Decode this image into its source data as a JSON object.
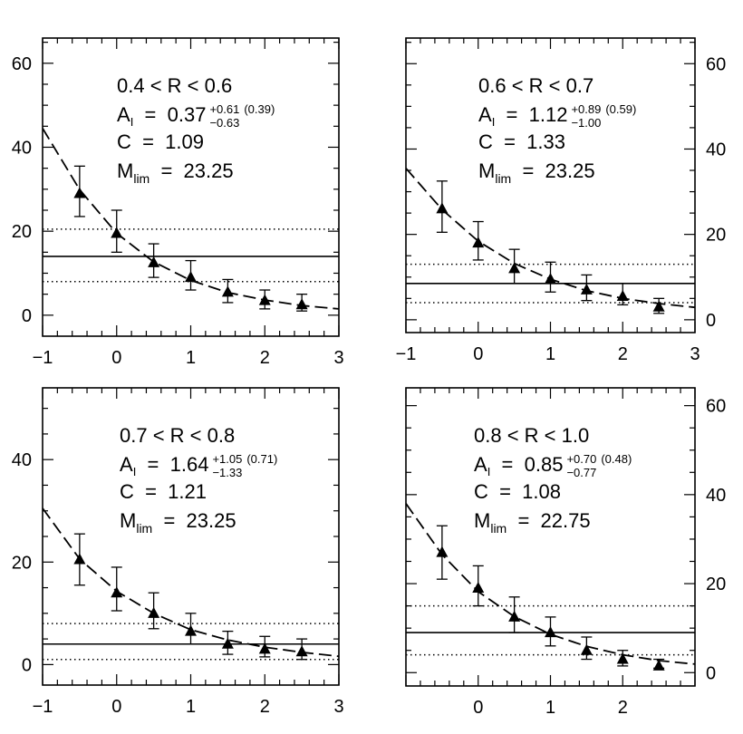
{
  "chart_data": [
    {
      "type": "scatter",
      "x": [
        -0.5,
        0,
        0.5,
        1,
        1.5,
        2,
        2.5
      ],
      "y": [
        29,
        19.5,
        12.5,
        9,
        5.5,
        3.5,
        2.5
      ],
      "y_err_low": [
        5.5,
        4.5,
        3.5,
        3,
        2.5,
        2,
        1.5
      ],
      "y_err_high": [
        6.5,
        5.5,
        4.5,
        4,
        3,
        2.5,
        2.5
      ],
      "fit_curve": [
        [
          -1,
          44.5
        ],
        [
          -0.5,
          29.9
        ],
        [
          0,
          19.5
        ],
        [
          0.5,
          12.7
        ],
        [
          1,
          8.3
        ],
        [
          1.5,
          5.4
        ],
        [
          2,
          3.6
        ],
        [
          2.5,
          2.3
        ],
        [
          3,
          1.5
        ]
      ],
      "horizontal_lines": {
        "solid": 14,
        "dotted": [
          20.5,
          8
        ]
      },
      "xlim": [
        -1,
        3
      ],
      "ylim": [
        -5,
        66
      ],
      "x_ticks": [
        "-1",
        "0",
        "1",
        "2",
        "3"
      ],
      "y_ticks": [
        "0",
        "20",
        "40",
        "60"
      ],
      "y_tick_values": [
        0,
        20,
        40,
        60
      ],
      "y_axis_side": "left",
      "annotation": {
        "range": "0.4  <  R  <  0.6",
        "a_label": "A",
        "a_sub": "I",
        "a_value": "  =  0.37",
        "a_err_plus": "+0.61",
        "a_err_minus": "−0.63",
        "a_err_sigma": "(0.39)",
        "c_line": "C  =  1.09",
        "m_label": "M",
        "m_sub": "lim",
        "m_value": "  =  23.25"
      }
    },
    {
      "type": "scatter",
      "x": [
        -0.5,
        0,
        0.5,
        1,
        1.5,
        2,
        2.5
      ],
      "y": [
        26,
        18,
        12,
        9.5,
        7,
        5.5,
        3
      ],
      "y_err_low": [
        5.5,
        4,
        3.5,
        3,
        2.5,
        2,
        1.5
      ],
      "y_err_high": [
        6.5,
        5,
        4.5,
        4,
        3.5,
        3,
        2
      ],
      "fit_curve": [
        [
          -1,
          35.5
        ],
        [
          -0.5,
          25.8
        ],
        [
          0,
          18.4
        ],
        [
          0.5,
          13.2
        ],
        [
          1,
          9.5
        ],
        [
          1.5,
          6.8
        ],
        [
          2,
          5
        ],
        [
          2.5,
          3.8
        ],
        [
          3,
          2.9
        ]
      ],
      "horizontal_lines": {
        "solid": 8.5,
        "dotted": [
          13,
          4
        ]
      },
      "xlim": [
        -1,
        3
      ],
      "ylim": [
        -3,
        66
      ],
      "x_ticks": [
        "-1",
        "0",
        "1",
        "2",
        "3"
      ],
      "y_ticks": [
        "0",
        "20",
        "40",
        "60"
      ],
      "y_tick_values": [
        0,
        20,
        40,
        60
      ],
      "y_axis_side": "right",
      "annotation": {
        "range": "0.6  <  R  <  0.7",
        "a_label": "A",
        "a_sub": "I",
        "a_value": "  =  1.12",
        "a_err_plus": "+0.89",
        "a_err_minus": "−1.00",
        "a_err_sigma": "(0.59)",
        "c_line": "C  =  1.33",
        "m_label": "M",
        "m_sub": "lim",
        "m_value": "  =  23.25"
      }
    },
    {
      "type": "scatter",
      "x": [
        -0.5,
        0,
        0.5,
        1,
        1.5,
        2,
        2.5
      ],
      "y": [
        20.5,
        14,
        10,
        6.5,
        4,
        3,
        2.5
      ],
      "y_err_low": [
        5,
        3.5,
        3,
        2.5,
        2,
        1.5,
        1.5
      ],
      "y_err_high": [
        5,
        5,
        4,
        3.5,
        2.5,
        2.5,
        2.5
      ],
      "fit_curve": [
        [
          -1,
          30.5
        ],
        [
          -0.5,
          20.6
        ],
        [
          0,
          14.3
        ],
        [
          0.5,
          10
        ],
        [
          1,
          6.8
        ],
        [
          1.5,
          4.8
        ],
        [
          2,
          3.4
        ],
        [
          2.5,
          2.4
        ],
        [
          3,
          1.6
        ]
      ],
      "horizontal_lines": {
        "solid": 4,
        "dotted": [
          8,
          1
        ]
      },
      "xlim": [
        -1,
        3
      ],
      "ylim": [
        -4,
        54
      ],
      "x_ticks": [
        "-1",
        "0",
        "1",
        "2",
        "3"
      ],
      "y_ticks": [
        "0",
        "20",
        "40"
      ],
      "y_tick_values": [
        0,
        20,
        40
      ],
      "y_axis_side": "left",
      "annotation": {
        "range": "0.7  <  R  <  0.8",
        "a_label": "A",
        "a_sub": "I",
        "a_value": "  =  1.64",
        "a_err_plus": "+1.05",
        "a_err_minus": "−1.33",
        "a_err_sigma": "(0.71)",
        "c_line": "C  =  1.21",
        "m_label": "M",
        "m_sub": "lim",
        "m_value": "  =  23.25"
      }
    },
    {
      "type": "scatter",
      "x": [
        -0.5,
        0,
        0.5,
        1,
        1.5,
        2,
        2.5
      ],
      "y": [
        27,
        19,
        12.5,
        9,
        5,
        3,
        1.5
      ],
      "y_err_low": [
        6,
        4,
        3.5,
        3,
        2,
        1.5,
        0.5
      ],
      "y_err_high": [
        6,
        5,
        4.5,
        3.5,
        3,
        2,
        1.5
      ],
      "fit_curve": [
        [
          -1,
          38
        ],
        [
          -0.5,
          26.5
        ],
        [
          0,
          18.2
        ],
        [
          0.5,
          12.6
        ],
        [
          1,
          8.6
        ],
        [
          1.5,
          5.9
        ],
        [
          2,
          4
        ],
        [
          2.5,
          2.7
        ],
        [
          3,
          1.9
        ]
      ],
      "horizontal_lines": {
        "solid": 9,
        "dotted": [
          15,
          4
        ]
      },
      "xlim": [
        -1,
        3
      ],
      "ylim": [
        -3,
        64
      ],
      "x_ticks": [
        "0",
        "1",
        "2"
      ],
      "x_tick_values": [
        0,
        1,
        2
      ],
      "y_ticks": [
        "0",
        "20",
        "40",
        "60"
      ],
      "y_tick_values": [
        0,
        20,
        40,
        60
      ],
      "y_axis_side": "right",
      "annotation": {
        "range": "0.8  <  R  <  1.0",
        "a_label": "A",
        "a_sub": "I",
        "a_value": "  =  0.85",
        "a_err_plus": "+0.70",
        "a_err_minus": "−0.77",
        "a_err_sigma": "(0.48)",
        "c_line": "C  =  1.08",
        "m_label": "M",
        "m_sub": "lim",
        "m_value": "  =  22.75"
      }
    }
  ]
}
